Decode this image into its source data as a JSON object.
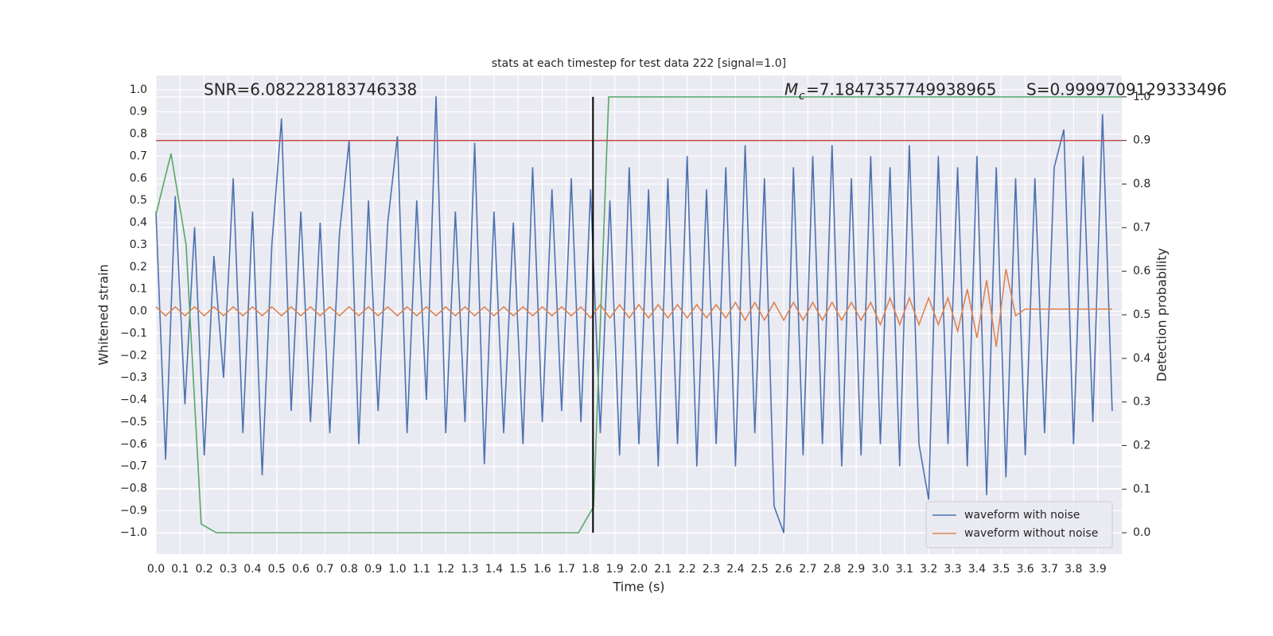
{
  "chart_data": {
    "type": "line",
    "title": "stats at each timestep for test data 222 [signal=1.0]",
    "x_label": "Time (s)",
    "y_label": "Whitened strain",
    "y2_label": "Detection probability",
    "annotations": [
      {
        "text": "SNR=6.082228183746338"
      },
      {
        "symbol": "M",
        "subscript": "c",
        "text": "=7.1847357749938965"
      },
      {
        "text": "S=0.9999709129333496"
      }
    ],
    "xlim": [
      0,
      4.0
    ],
    "ylim": [
      -1.096,
      1.064
    ],
    "y2lim": [
      -0.049,
      1.049
    ],
    "grid": true,
    "legend": "lower right",
    "xticks": [
      {
        "value": 0,
        "label": "0.0"
      },
      0.1,
      0.2,
      0.3,
      0.4,
      0.5,
      0.6,
      0.7,
      0.8,
      0.9,
      {
        "value": 1,
        "label": "1.0"
      },
      1.1,
      1.2,
      1.3,
      1.4,
      1.5,
      1.6,
      1.7,
      1.8,
      1.9,
      {
        "value": 2,
        "label": "2.0"
      },
      2.1,
      2.2,
      2.3,
      2.4,
      2.5,
      2.6,
      2.7,
      2.8,
      2.9,
      {
        "value": 3,
        "label": "3.0"
      },
      3.1,
      3.2,
      3.3,
      3.4,
      3.5,
      3.6,
      3.7,
      3.8,
      3.9
    ],
    "yticks": [
      {
        "value": -1,
        "label": "−1.0"
      },
      {
        "value": -0.9,
        "label": "−0.9"
      },
      {
        "value": -0.8,
        "label": "−0.8"
      },
      {
        "value": -0.7,
        "label": "−0.7"
      },
      {
        "value": -0.6,
        "label": "−0.6"
      },
      {
        "value": -0.5,
        "label": "−0.5"
      },
      {
        "value": -0.4,
        "label": "−0.4"
      },
      {
        "value": -0.3,
        "label": "−0.3"
      },
      {
        "value": -0.2,
        "label": "−0.2"
      },
      {
        "value": -0.1,
        "label": "−0.1"
      },
      {
        "value": 0,
        "label": "0.0"
      },
      0.1,
      0.2,
      0.3,
      0.4,
      0.5,
      0.6,
      0.7,
      0.8,
      0.9,
      {
        "value": 1,
        "label": "1.0"
      }
    ],
    "y2ticks": [
      {
        "value": 0,
        "label": "0.0"
      },
      0.1,
      0.2,
      0.3,
      0.4,
      0.5,
      0.6,
      0.7,
      0.8,
      0.9,
      {
        "value": 1,
        "label": "1.0"
      }
    ],
    "threshold": {
      "value": 0.9,
      "axis": "y2",
      "color": "#c44e52"
    },
    "vline": {
      "value": 1.81,
      "color": "#000000",
      "ymin": 0,
      "ymax": 1,
      "axis": "y2"
    },
    "series": [
      {
        "name": "waveform with noise",
        "color": "#4c72b0",
        "x": [
          0,
          0.04,
          0.08,
          0.12,
          0.16,
          0.2,
          0.24,
          0.28,
          0.32,
          0.36,
          0.4,
          0.44,
          0.48,
          0.52,
          0.56,
          0.6,
          0.64,
          0.68,
          0.72,
          0.76,
          0.8,
          0.84,
          0.88,
          0.92,
          0.96,
          1,
          1.04,
          1.08,
          1.12,
          1.16,
          1.2,
          1.24,
          1.28,
          1.32,
          1.36,
          1.4,
          1.44,
          1.48,
          1.52,
          1.56,
          1.6,
          1.64,
          1.68,
          1.72,
          1.76,
          1.8,
          1.84,
          1.88,
          1.92,
          1.96,
          2,
          2.04,
          2.08,
          2.12,
          2.16,
          2.2,
          2.24,
          2.28,
          2.32,
          2.36,
          2.4,
          2.44,
          2.48,
          2.52,
          2.56,
          2.6,
          2.64,
          2.68,
          2.72,
          2.76,
          2.8,
          2.84,
          2.88,
          2.92,
          2.96,
          3,
          3.04,
          3.08,
          3.12,
          3.16,
          3.2,
          3.24,
          3.28,
          3.32,
          3.36,
          3.4,
          3.44,
          3.48,
          3.52,
          3.56,
          3.6,
          3.64,
          3.68,
          3.72,
          3.76,
          3.8,
          3.84,
          3.88,
          3.92,
          3.96
        ],
        "values": [
          0.45,
          -0.67,
          0.52,
          -0.42,
          0.38,
          -0.65,
          0.25,
          -0.3,
          0.6,
          -0.55,
          0.45,
          -0.74,
          0.3,
          0.87,
          -0.45,
          0.45,
          -0.5,
          0.4,
          -0.55,
          0.35,
          0.77,
          -0.6,
          0.5,
          -0.45,
          0.4,
          0.79,
          -0.55,
          0.5,
          -0.4,
          0.97,
          -0.55,
          0.45,
          -0.5,
          0.76,
          -0.69,
          0.45,
          -0.55,
          0.4,
          -0.6,
          0.65,
          -0.5,
          0.55,
          -0.45,
          0.6,
          -0.5,
          0.55,
          -0.55,
          0.5,
          -0.65,
          0.65,
          -0.6,
          0.55,
          -0.7,
          0.6,
          -0.6,
          0.7,
          -0.7,
          0.55,
          -0.6,
          0.65,
          -0.7,
          0.75,
          -0.55,
          0.6,
          -0.88,
          -1.0,
          0.65,
          -0.65,
          0.7,
          -0.6,
          0.75,
          -0.7,
          0.6,
          -0.65,
          0.7,
          -0.6,
          0.65,
          -0.7,
          0.75,
          -0.6,
          -0.85,
          0.7,
          -0.6,
          0.65,
          -0.7,
          0.7,
          -0.83,
          0.65,
          -0.75,
          0.6,
          -0.65,
          0.6,
          -0.55,
          0.65,
          0.82,
          -0.6,
          0.7,
          -0.5,
          0.89,
          -0.45
        ]
      },
      {
        "name": "waveform without noise",
        "color": "#dd8452",
        "x": [
          0,
          0.04,
          0.08,
          0.12,
          0.16,
          0.2,
          0.24,
          0.28,
          0.32,
          0.36,
          0.4,
          0.44,
          0.48,
          0.52,
          0.56,
          0.6,
          0.64,
          0.68,
          0.72,
          0.76,
          0.8,
          0.84,
          0.88,
          0.92,
          0.96,
          1,
          1.04,
          1.08,
          1.12,
          1.16,
          1.2,
          1.24,
          1.28,
          1.32,
          1.36,
          1.4,
          1.44,
          1.48,
          1.52,
          1.56,
          1.6,
          1.64,
          1.68,
          1.72,
          1.76,
          1.8,
          1.84,
          1.88,
          1.92,
          1.96,
          2,
          2.04,
          2.08,
          2.12,
          2.16,
          2.2,
          2.24,
          2.28,
          2.32,
          2.36,
          2.4,
          2.44,
          2.48,
          2.52,
          2.56,
          2.6,
          2.64,
          2.68,
          2.72,
          2.76,
          2.8,
          2.84,
          2.88,
          2.92,
          2.96,
          3,
          3.04,
          3.08,
          3.12,
          3.16,
          3.2,
          3.24,
          3.28,
          3.32,
          3.36,
          3.4,
          3.44,
          3.48,
          3.52,
          3.56,
          3.6,
          3.64,
          3.68,
          3.72,
          3.76,
          3.8,
          3.84,
          3.88,
          3.92,
          3.96
        ],
        "values": [
          0.02,
          -0.02,
          0.02,
          -0.02,
          0.02,
          -0.02,
          0.02,
          -0.02,
          0.02,
          -0.02,
          0.02,
          -0.02,
          0.02,
          -0.02,
          0.02,
          -0.02,
          0.02,
          -0.02,
          0.02,
          -0.02,
          0.02,
          -0.02,
          0.02,
          -0.02,
          0.02,
          -0.02,
          0.02,
          -0.02,
          0.02,
          -0.02,
          0.02,
          -0.02,
          0.02,
          -0.02,
          0.02,
          -0.02,
          0.02,
          -0.02,
          0.02,
          -0.02,
          0.02,
          -0.02,
          0.02,
          -0.02,
          0.02,
          -0.03,
          0.03,
          -0.03,
          0.03,
          -0.03,
          0.03,
          -0.03,
          0.03,
          -0.03,
          0.03,
          -0.03,
          0.03,
          -0.03,
          0.03,
          -0.03,
          0.04,
          -0.04,
          0.04,
          -0.04,
          0.04,
          -0.04,
          0.04,
          -0.04,
          0.04,
          -0.04,
          0.04,
          -0.04,
          0.04,
          -0.04,
          0.04,
          -0.06,
          0.06,
          -0.06,
          0.06,
          -0.06,
          0.06,
          -0.06,
          0.06,
          -0.09,
          0.1,
          -0.12,
          0.14,
          -0.16,
          0.19,
          -0.02,
          0.01,
          0.01,
          0.01,
          0.01,
          0.01,
          0.01,
          0.01,
          0.01,
          0.01,
          0.01
        ]
      },
      {
        "color": "#55a868",
        "axis": "y2",
        "x": [
          0,
          0.0625,
          0.125,
          0.1875,
          0.25,
          1.75,
          1.8125,
          1.875,
          4.0
        ],
        "values": [
          0.73,
          0.87,
          0.66,
          0.02,
          0.0,
          0.0,
          0.06,
          1.0,
          1.0
        ]
      }
    ]
  }
}
